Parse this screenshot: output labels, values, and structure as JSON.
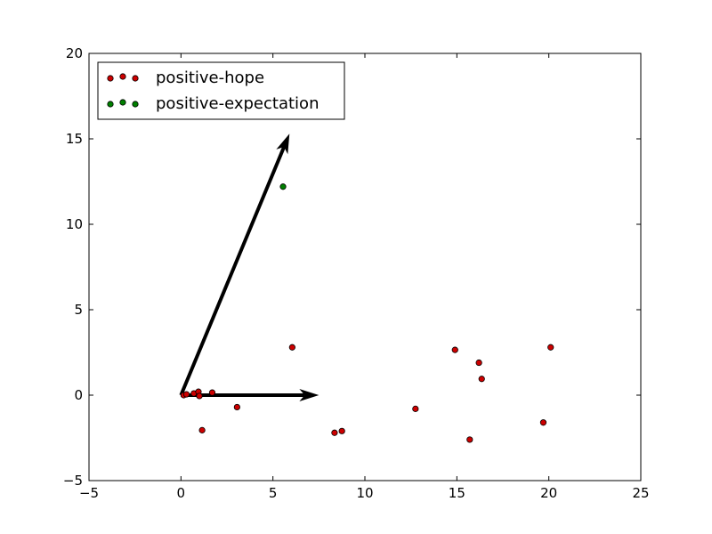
{
  "chart_data": {
    "type": "scatter",
    "xlim": [
      -5,
      25
    ],
    "ylim": [
      -5,
      20
    ],
    "x_ticks": [
      -5,
      0,
      5,
      10,
      15,
      20,
      25
    ],
    "y_ticks": [
      -5,
      0,
      5,
      10,
      15,
      20
    ],
    "x_tick_labels": [
      "−5",
      "0",
      "5",
      "10",
      "15",
      "20",
      "25"
    ],
    "y_tick_labels": [
      "−5",
      "0",
      "5",
      "10",
      "15",
      "20"
    ],
    "grid": false,
    "legend_position": "top-left",
    "series": [
      {
        "name": "positive-hope",
        "color": "#cc0000",
        "points": [
          {
            "x": 0.15,
            "y": 0.0
          },
          {
            "x": 0.3,
            "y": 0.05
          },
          {
            "x": 0.7,
            "y": 0.1
          },
          {
            "x": 0.95,
            "y": 0.2
          },
          {
            "x": 1.0,
            "y": -0.05
          },
          {
            "x": 1.7,
            "y": 0.15
          },
          {
            "x": 1.15,
            "y": -2.05
          },
          {
            "x": 3.05,
            "y": -0.7
          },
          {
            "x": 6.05,
            "y": 2.8
          },
          {
            "x": 8.35,
            "y": -2.2
          },
          {
            "x": 8.75,
            "y": -2.1
          },
          {
            "x": 12.75,
            "y": -0.8
          },
          {
            "x": 14.9,
            "y": 2.65
          },
          {
            "x": 15.7,
            "y": -2.6
          },
          {
            "x": 16.2,
            "y": 1.9
          },
          {
            "x": 16.35,
            "y": 0.95
          },
          {
            "x": 19.7,
            "y": -1.6
          },
          {
            "x": 20.1,
            "y": 2.8
          }
        ]
      },
      {
        "name": "positive-expectation",
        "color": "#007f00",
        "points": [
          {
            "x": 5.55,
            "y": 12.2
          }
        ]
      }
    ],
    "arrows": [
      {
        "x0": 0,
        "y0": 0,
        "x1": 7.5,
        "y1": 0
      },
      {
        "x0": 0,
        "y0": 0,
        "x1": 5.9,
        "y1": 15.3
      }
    ]
  }
}
